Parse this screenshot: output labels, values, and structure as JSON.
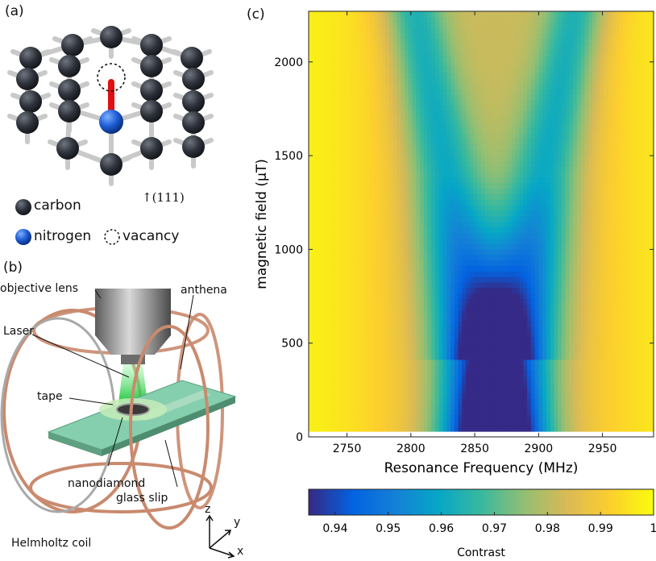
{
  "panel_a": {
    "label": "(a)",
    "direction_label": "↑(111)",
    "legend": {
      "carbon": "carbon",
      "nitrogen": "nitrogen",
      "vacancy": "vacancy"
    },
    "colors": {
      "carbon": "#2d3139",
      "nitrogen": "#1f5fd6",
      "bond": "#cfcfcf",
      "nv_bond": "#e01010"
    }
  },
  "panel_b": {
    "label": "(b)",
    "labels": {
      "objective_lens": "objective lens",
      "anthena": "anthena",
      "laser": "Laser",
      "tape": "tape",
      "nanodiamond": "nanodiamond",
      "glass_slip": "glass slip",
      "helmholtz": "Helmholtz coil",
      "axis_z": "z",
      "axis_y": "y",
      "axis_x": "x"
    },
    "colors": {
      "coil": "#c98a6e",
      "laser": "#2fd64a",
      "glass": "#7fc7a4",
      "lens": "#8a8a8a"
    }
  },
  "panel_c": {
    "label": "(c)",
    "colorbar_label": "Contrast"
  },
  "chart_data": {
    "type": "heatmap",
    "title": "",
    "xlabel": "Resonance Frequency (MHz)",
    "ylabel": "magnetic field (μT)",
    "xlim": [
      2720,
      2990
    ],
    "ylim": [
      0,
      2270
    ],
    "x_ticks": [
      2750,
      2800,
      2850,
      2900,
      2950
    ],
    "y_ticks": [
      0,
      500,
      1000,
      1500,
      2000
    ],
    "data_ymin": 30,
    "resonance_center_mhz": 2866,
    "resonance_split_mhz_per_uT": 0.028,
    "colorbar": {
      "min": 0.935,
      "max": 1.0,
      "ticks": [
        0.94,
        0.95,
        0.96,
        0.97,
        0.98,
        0.99,
        1
      ],
      "tick_labels": [
        "0.94",
        "0.95",
        "0.96",
        "0.97",
        "0.98",
        "0.99",
        "1"
      ],
      "label": "Contrast",
      "colormap": "parula"
    }
  }
}
